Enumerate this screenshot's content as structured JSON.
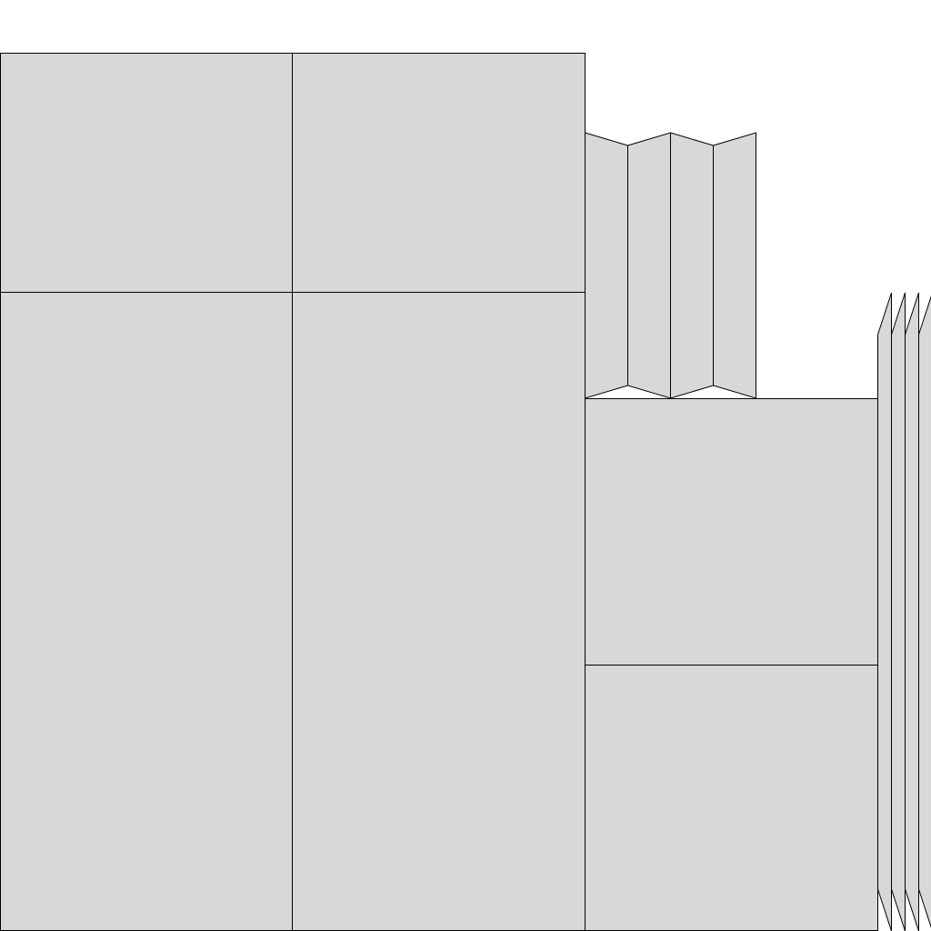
{
  "diagram": {
    "fill_color": "#d8d8d8",
    "stroke_color": "#000000",
    "background": "#ffffff",
    "groups": [
      {
        "kind": "rectangle-grid",
        "rows": 2,
        "columns": 2
      },
      {
        "kind": "zigzag-fold",
        "panels": 4
      },
      {
        "kind": "rectangle-stack",
        "rows": 2,
        "columns": 1
      },
      {
        "kind": "slanted-strips",
        "panels": 4
      }
    ]
  }
}
